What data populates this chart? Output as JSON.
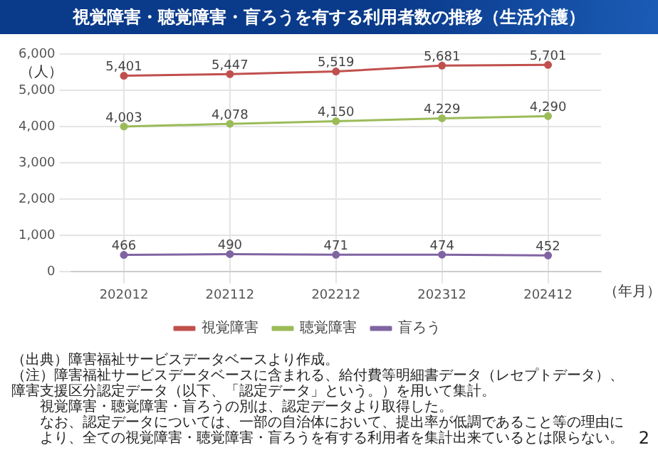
{
  "chart_data": {
    "type": "line",
    "title": "視覚障害・聴覚障害・盲ろうを有する利用者数の推移（生活介護）",
    "xlabel": "（年月）",
    "ylabel": "（人）",
    "categories": [
      "202012",
      "202112",
      "202212",
      "202312",
      "202412"
    ],
    "series": [
      {
        "name": "視覚障害",
        "color": "#c0504d",
        "values": [
          5401,
          5447,
          5519,
          5681,
          5701
        ],
        "value_labels": [
          "5,401",
          "5,447",
          "5,519",
          "5,681",
          "5,701"
        ]
      },
      {
        "name": "聴覚障害",
        "color": "#9bbb59",
        "values": [
          4003,
          4078,
          4150,
          4229,
          4290
        ],
        "value_labels": [
          "4,003",
          "4,078",
          "4,150",
          "4,229",
          "4,290"
        ]
      },
      {
        "name": "盲ろう",
        "color": "#8064a2",
        "values": [
          466,
          490,
          471,
          474,
          452
        ],
        "value_labels": [
          "466",
          "490",
          "471",
          "474",
          "452"
        ]
      }
    ],
    "ylim": [
      0,
      6000
    ],
    "yticks": [
      {
        "value": 0,
        "label": "0"
      },
      {
        "value": 1000,
        "label": "1,000"
      },
      {
        "value": 2000,
        "label": "2,000"
      },
      {
        "value": 3000,
        "label": "3,000"
      },
      {
        "value": 4000,
        "label": "4,000"
      },
      {
        "value": 5000,
        "label": "5,000"
      },
      {
        "value": 6000,
        "label": "6,000"
      }
    ],
    "grid": true,
    "legend": "bottom",
    "marker": "circle",
    "line_style": "solid",
    "annotations": [
      "（出典）障害福祉サービスデータベースより作成。",
      "（注）障害福祉サービスデータベースに含まれる、給付費等明細書データ（レセプトデータ）、障害支援区分認定データ（以下、「認定データ」という。）を用いて集計。",
      "視覚障害・聴覚障害・盲ろうの別は、認定データより取得した。",
      "なお、認定データについては、一部の自治体において、提出率が低調であること等の理由により、全ての視覚障害・聴覚障害・盲ろうを有する利用者を集計出来ているとは限らない。",
      "2"
    ]
  }
}
